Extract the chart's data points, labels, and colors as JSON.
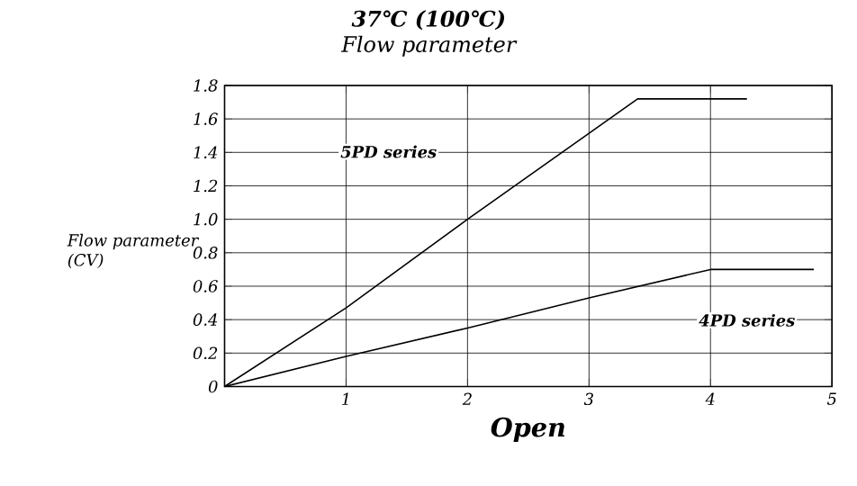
{
  "chart_data": {
    "type": "line",
    "title": "37℃ (100℃)",
    "subtitle": "Flow parameter",
    "xlabel": "Open",
    "ylabel": "Flow parameter (CV)",
    "xlim": [
      0,
      5
    ],
    "xticks": [
      1,
      2,
      3,
      4,
      5
    ],
    "ylim": [
      0,
      1.8
    ],
    "yticks": [
      0,
      0.2,
      0.4,
      0.6,
      0.8,
      {
        "value": 1.0,
        "label": "1.0"
      },
      1.2,
      1.4,
      1.6,
      1.8
    ],
    "grid": true,
    "marker": "none",
    "line_style": "solid",
    "series": [
      {
        "color": "#000000",
        "x": [
          0,
          1,
          2,
          3.4,
          4.3
        ],
        "values": [
          0,
          0.47,
          1.0,
          1.72,
          1.72
        ]
      },
      {
        "color": "#000000",
        "x": [
          0,
          1,
          2,
          3,
          4,
          4.85
        ],
        "values": [
          0,
          0.18,
          0.35,
          0.53,
          0.7,
          0.7
        ]
      }
    ],
    "annotations": [
      "5PD series",
      "4PD series"
    ]
  }
}
